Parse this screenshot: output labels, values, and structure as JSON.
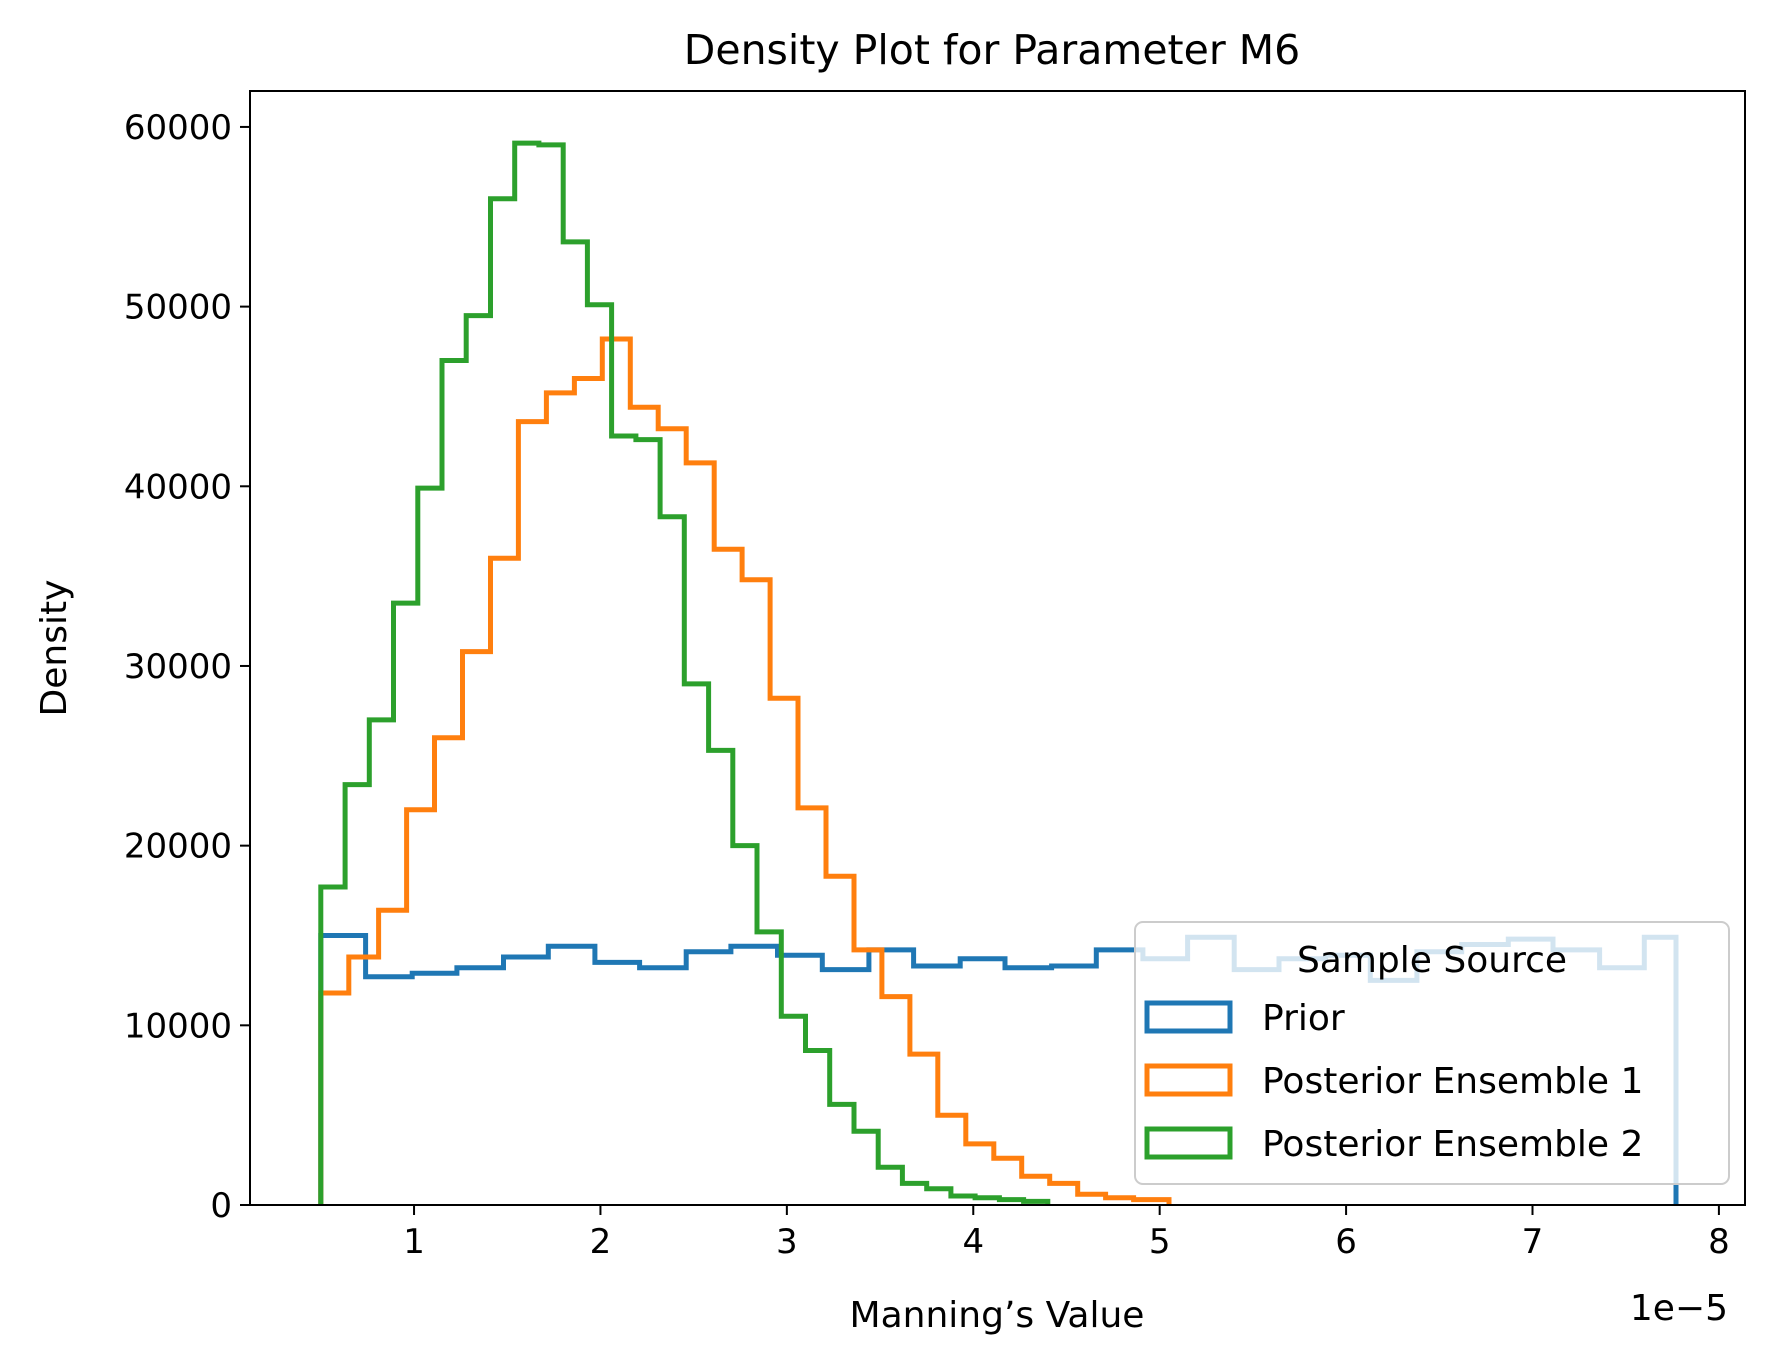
{
  "chart_data": {
    "type": "histogram-step",
    "title": "Density Plot for Parameter M6",
    "xlabel": "Manning’s Value",
    "ylabel": "Density",
    "x_offset_label": "1e−5",
    "xlim": [
      0.12,
      8.14
    ],
    "ylim": [
      0,
      62000
    ],
    "x_ticks": [
      1,
      2,
      3,
      4,
      5,
      6,
      7,
      8
    ],
    "x_tick_labels": [
      "1",
      "2",
      "3",
      "4",
      "5",
      "6",
      "7",
      "8"
    ],
    "y_ticks": [
      0,
      10000,
      20000,
      30000,
      40000,
      50000,
      60000
    ],
    "y_tick_labels": [
      "0",
      "10000",
      "20000",
      "30000",
      "40000",
      "50000",
      "60000"
    ],
    "grid": false,
    "legend": {
      "title": "Sample Source",
      "placement": "lower-right"
    },
    "series": [
      {
        "name": "Prior",
        "color": "#1f77b4",
        "edges": [
          0.5,
          0.74,
          0.99,
          1.23,
          1.48,
          1.72,
          1.97,
          2.21,
          2.46,
          2.7,
          2.95,
          3.19,
          3.44,
          3.68,
          3.93,
          4.17,
          4.42,
          4.66,
          4.91,
          5.15,
          5.4,
          5.64,
          5.89,
          6.13,
          6.38,
          6.62,
          6.87,
          7.11,
          7.36,
          7.6,
          7.77
        ],
        "values": [
          15000,
          12700,
          12900,
          13200,
          13800,
          14400,
          13500,
          13200,
          14100,
          14400,
          13900,
          13100,
          14200,
          13300,
          13700,
          13200,
          13300,
          14200,
          13700,
          14900,
          13100,
          13700,
          13900,
          12500,
          14100,
          14500,
          14800,
          14200,
          13200,
          14900
        ]
      },
      {
        "name": "Posterior Ensemble 1",
        "color": "#ff7f0e",
        "edges": [
          0.5,
          0.65,
          0.81,
          0.96,
          1.11,
          1.26,
          1.41,
          1.56,
          1.71,
          1.86,
          2.01,
          2.16,
          2.31,
          2.46,
          2.61,
          2.76,
          2.91,
          3.06,
          3.21,
          3.36,
          3.51,
          3.66,
          3.81,
          3.96,
          4.11,
          4.26,
          4.41,
          4.56,
          4.71,
          4.86,
          5.05
        ],
        "values": [
          11800,
          13800,
          16400,
          22000,
          26000,
          30800,
          36000,
          43600,
          45200,
          46000,
          48200,
          44400,
          43200,
          41300,
          36500,
          34800,
          28200,
          22100,
          18300,
          14200,
          11600,
          8400,
          5000,
          3400,
          2600,
          1600,
          1200,
          600,
          400,
          300
        ]
      },
      {
        "name": "Posterior Ensemble 2",
        "color": "#2ca02c",
        "edges": [
          0.5,
          0.63,
          0.76,
          0.89,
          1.02,
          1.15,
          1.28,
          1.41,
          1.54,
          1.67,
          1.8,
          1.93,
          2.06,
          2.19,
          2.32,
          2.45,
          2.58,
          2.71,
          2.84,
          2.97,
          3.1,
          3.23,
          3.36,
          3.49,
          3.62,
          3.75,
          3.88,
          4.01,
          4.14,
          4.27,
          4.4
        ],
        "values": [
          17700,
          23400,
          27000,
          33500,
          39900,
          47000,
          49500,
          56000,
          59100,
          59000,
          53600,
          50100,
          42800,
          42600,
          38300,
          29000,
          25300,
          20000,
          15200,
          10500,
          8600,
          5600,
          4100,
          2100,
          1200,
          900,
          500,
          400,
          300,
          200
        ]
      }
    ]
  }
}
